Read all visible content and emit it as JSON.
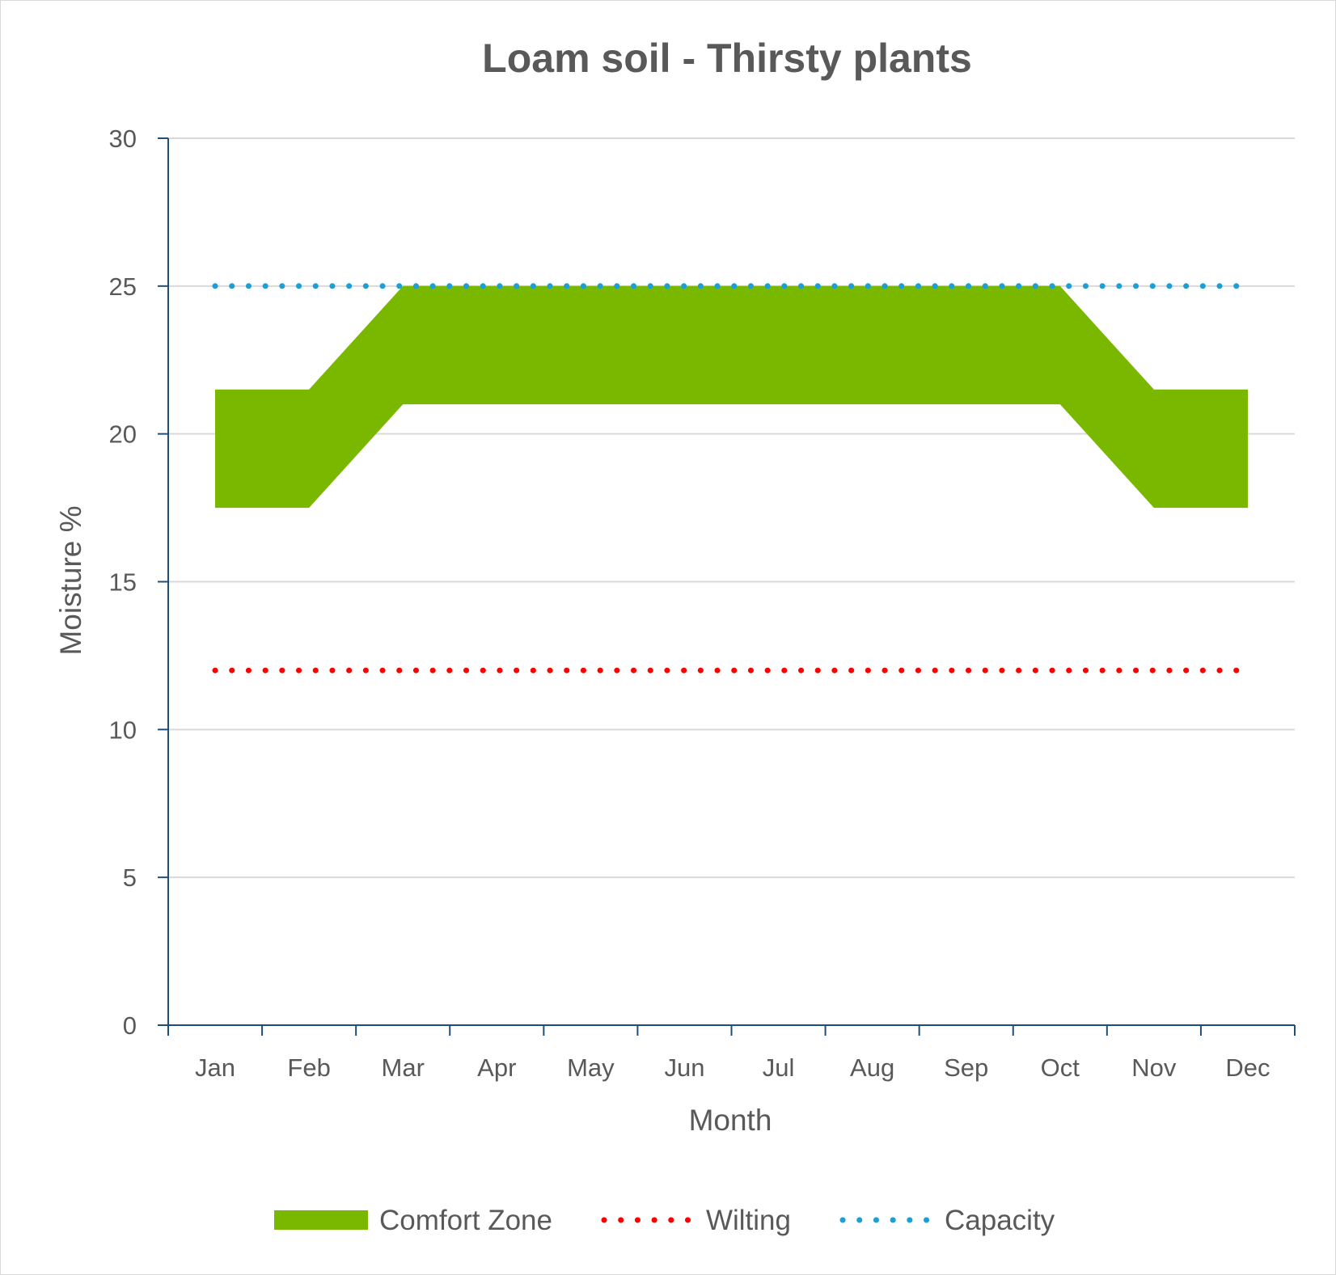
{
  "chart_data": {
    "type": "area",
    "title": "Loam soil - Thirsty plants",
    "xlabel": "Month",
    "ylabel": "Moisture %",
    "categories": [
      "Jan",
      "Feb",
      "Mar",
      "Apr",
      "May",
      "Jun",
      "Jul",
      "Aug",
      "Sep",
      "Oct",
      "Nov",
      "Dec"
    ],
    "ylim": [
      0,
      30
    ],
    "yticks": [
      "0",
      "5",
      "10",
      "15",
      "20",
      "25",
      "30"
    ],
    "grid": true,
    "legend_position": "bottom",
    "series": [
      {
        "name": "Comfort Zone",
        "style": "band",
        "color": "#7ab800",
        "lower": [
          17.5,
          17.5,
          21,
          21,
          21,
          21,
          21,
          21,
          21,
          21,
          17.5,
          17.5
        ],
        "upper": [
          21.5,
          21.5,
          25,
          25,
          25,
          25,
          25,
          25,
          25,
          25,
          21.5,
          21.5
        ]
      },
      {
        "name": "Wilting",
        "style": "dotted",
        "color": "#ff0000",
        "values": [
          12,
          12,
          12,
          12,
          12,
          12,
          12,
          12,
          12,
          12,
          12,
          12
        ]
      },
      {
        "name": "Capacity",
        "style": "dotted",
        "color": "#1a9fd6",
        "values": [
          25,
          25,
          25,
          25,
          25,
          25,
          25,
          25,
          25,
          25,
          25,
          25
        ]
      }
    ]
  }
}
